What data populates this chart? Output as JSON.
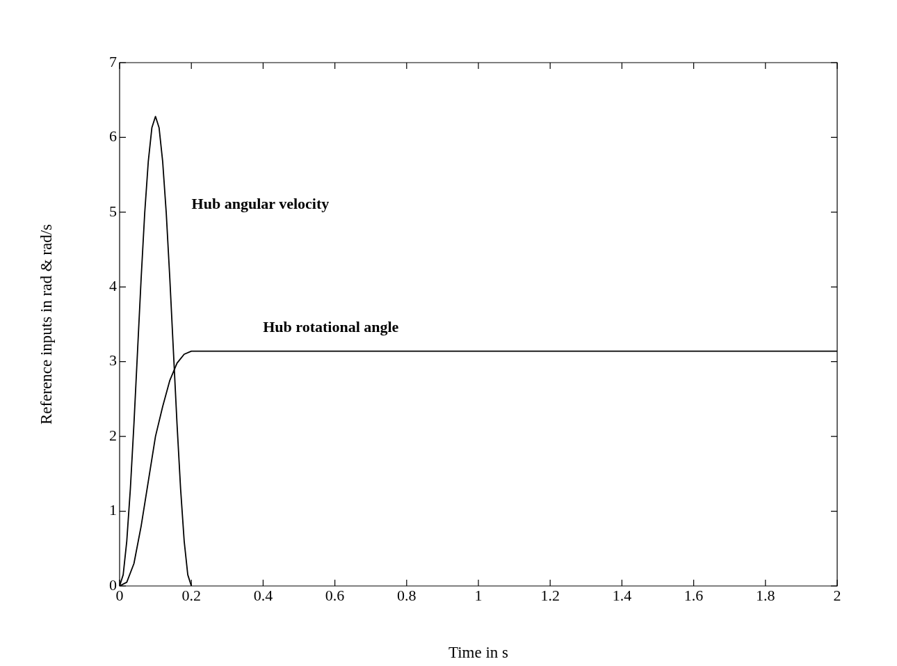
{
  "chart_data": {
    "type": "line",
    "xlabel": "Time in s",
    "ylabel": "Reference inputs in rad & rad/s",
    "xlim": [
      0,
      2
    ],
    "ylim": [
      0,
      7
    ],
    "xticks": [
      0,
      0.2,
      0.4,
      0.6,
      0.8,
      1,
      1.2,
      1.4,
      1.6,
      1.8,
      2
    ],
    "yticks": [
      0,
      1,
      2,
      3,
      4,
      5,
      6,
      7
    ],
    "grid": false,
    "legend": false,
    "marker": "none",
    "line_style": "solid",
    "series": [
      {
        "name": "Hub angular velocity",
        "color": "#000000",
        "x": [
          0,
          0.01,
          0.02,
          0.03,
          0.04,
          0.05,
          0.06,
          0.07,
          0.08,
          0.09,
          0.1,
          0.11,
          0.12,
          0.13,
          0.14,
          0.15,
          0.16,
          0.17,
          0.18,
          0.19,
          0.2
        ],
        "values": [
          0,
          0.15,
          0.6,
          1.3,
          2.17,
          3.14,
          4.11,
          4.99,
          5.68,
          6.13,
          6.28,
          6.13,
          5.68,
          4.99,
          4.11,
          3.14,
          2.17,
          1.3,
          0.6,
          0.15,
          0
        ]
      },
      {
        "name": "Hub rotational angle",
        "color": "#000000",
        "x": [
          0,
          0.02,
          0.04,
          0.06,
          0.08,
          0.1,
          0.12,
          0.14,
          0.16,
          0.18,
          0.2,
          2
        ],
        "values": [
          0,
          0.05,
          0.3,
          0.8,
          1.4,
          2,
          2.4,
          2.75,
          2.98,
          3.1,
          3.14,
          3.14
        ]
      }
    ]
  }
}
